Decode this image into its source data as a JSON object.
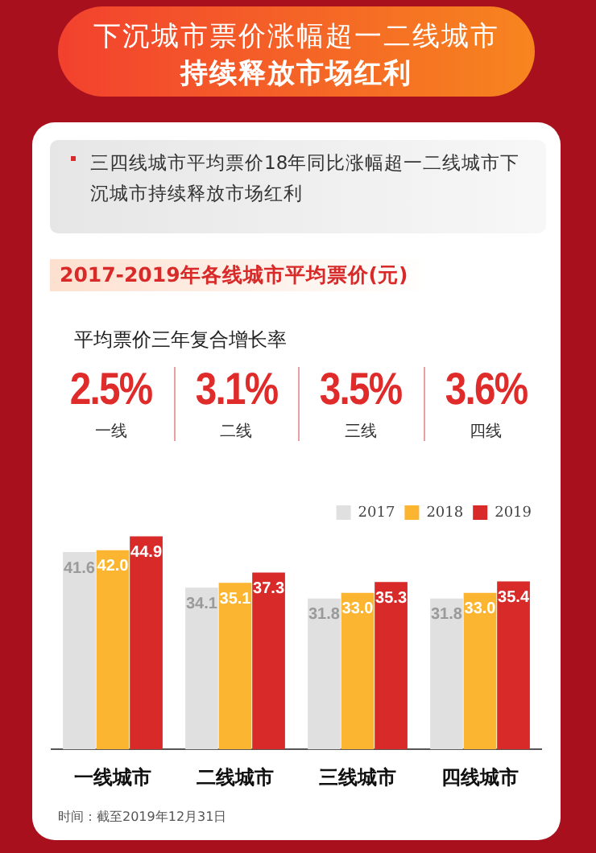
{
  "chart_data": [
    {
      "type": "other",
      "title": "下沉城市票价涨幅超一二线城市",
      "subtitle": "持续释放市场红利",
      "annotations": [
        "三四线城市平均票价18年同比涨幅超一二线城市下沉城市持续释放市场红利",
        "2017-2019年各线城市平均票价(元)"
      ]
    },
    {
      "type": "other",
      "title": "平均票价三年复合增长率",
      "categories": [
        "一线",
        "二线",
        "三线",
        "四线"
      ],
      "values": [
        2.5,
        3.1,
        3.5,
        3.6
      ],
      "value_labels": [
        "2.5%",
        "3.1%",
        "3.5%",
        "3.6%"
      ],
      "color": "#e02b2b"
    },
    {
      "type": "bar",
      "categories": [
        "一线城市",
        "二线城市",
        "三线城市",
        "四线城市"
      ],
      "series": [
        {
          "name": "2017",
          "color": "#e0e0e0",
          "values": [
            41.6,
            34.1,
            31.8,
            31.8
          ],
          "value_labels": [
            "41.6",
            "34.1",
            "31.8",
            "31.8"
          ]
        },
        {
          "name": "2018",
          "color": "#fbb531",
          "values": [
            42.0,
            35.1,
            33.0,
            33.0
          ],
          "value_labels": [
            "42.0",
            "35.1",
            "33.0",
            "33.0"
          ]
        },
        {
          "name": "2019",
          "color": "#d92a2a",
          "values": [
            44.9,
            37.3,
            35.3,
            35.4
          ],
          "value_labels": [
            "44.9",
            "37.3",
            "35.3",
            "35.4"
          ]
        }
      ],
      "legend": "top right",
      "annotations": [
        "时间：截至2019年12月31日"
      ]
    }
  ]
}
